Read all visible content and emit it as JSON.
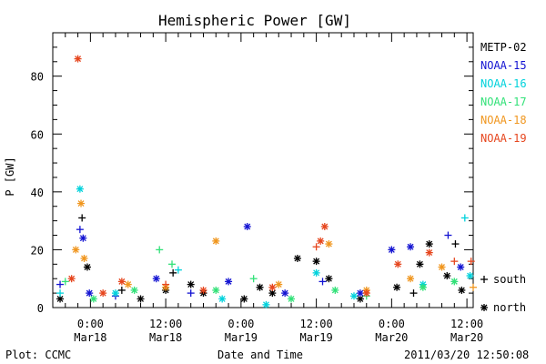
{
  "chart_data": {
    "type": "scatter",
    "title": "Hemispheric Power [GW]",
    "ylabel": "P [GW]",
    "xlabel": "Date and Time",
    "ylim": [
      0,
      95
    ],
    "xlim": [
      "2011-03-17 18:00",
      "2011-03-20 13:00"
    ],
    "y_ticks": [
      0,
      20,
      40,
      60,
      80
    ],
    "x_ticks": [
      {
        "time": "2011-03-18 00:00",
        "label1": "0:00",
        "label2": "Mar18"
      },
      {
        "time": "2011-03-18 12:00",
        "label1": "12:00",
        "label2": "Mar18"
      },
      {
        "time": "2011-03-19 00:00",
        "label1": "0:00",
        "label2": "Mar19"
      },
      {
        "time": "2011-03-19 12:00",
        "label1": "12:00",
        "label2": "Mar19"
      },
      {
        "time": "2011-03-20 00:00",
        "label1": "0:00",
        "label2": "Mar20"
      },
      {
        "time": "2011-03-20 12:00",
        "label1": "12:00",
        "label2": "Mar20"
      }
    ],
    "grid": false,
    "legend_position": "right",
    "markers": {
      "south": "+",
      "north": "*"
    },
    "marker_legend": [
      {
        "symbol": "+",
        "label": "south"
      },
      {
        "symbol": "*",
        "label": "north"
      }
    ],
    "series": [
      {
        "name": "METP-02",
        "color": "#000000",
        "points": [
          {
            "t": "2011-03-17 19:10",
            "v": 3,
            "h": "north"
          },
          {
            "t": "2011-03-17 22:40",
            "v": 31,
            "h": "south"
          },
          {
            "t": "2011-03-17 23:30",
            "v": 14,
            "h": "north"
          },
          {
            "t": "2011-03-18 05:00",
            "v": 6,
            "h": "south"
          },
          {
            "t": "2011-03-18 08:00",
            "v": 3,
            "h": "north"
          },
          {
            "t": "2011-03-18 12:00",
            "v": 6,
            "h": "north"
          },
          {
            "t": "2011-03-18 13:10",
            "v": 12,
            "h": "south"
          },
          {
            "t": "2011-03-18 16:00",
            "v": 8,
            "h": "north"
          },
          {
            "t": "2011-03-18 18:00",
            "v": 5,
            "h": "north"
          },
          {
            "t": "2011-03-19 00:30",
            "v": 3,
            "h": "north"
          },
          {
            "t": "2011-03-19 03:00",
            "v": 7,
            "h": "north"
          },
          {
            "t": "2011-03-19 05:00",
            "v": 5,
            "h": "north"
          },
          {
            "t": "2011-03-19 09:00",
            "v": 17,
            "h": "north"
          },
          {
            "t": "2011-03-19 12:00",
            "v": 16,
            "h": "north"
          },
          {
            "t": "2011-03-19 14:00",
            "v": 10,
            "h": "north"
          },
          {
            "t": "2011-03-19 19:00",
            "v": 3,
            "h": "north"
          },
          {
            "t": "2011-03-20 00:50",
            "v": 7,
            "h": "north"
          },
          {
            "t": "2011-03-20 03:30",
            "v": 5,
            "h": "south"
          },
          {
            "t": "2011-03-20 04:30",
            "v": 15,
            "h": "north"
          },
          {
            "t": "2011-03-20 06:00",
            "v": 22,
            "h": "north"
          },
          {
            "t": "2011-03-20 08:50",
            "v": 11,
            "h": "north"
          },
          {
            "t": "2011-03-20 10:10",
            "v": 22,
            "h": "south"
          },
          {
            "t": "2011-03-20 11:10",
            "v": 6,
            "h": "north"
          }
        ]
      },
      {
        "name": "NOAA-15",
        "color": "#1414d2",
        "points": [
          {
            "t": "2011-03-17 19:10",
            "v": 8,
            "h": "south"
          },
          {
            "t": "2011-03-17 22:20",
            "v": 27,
            "h": "south"
          },
          {
            "t": "2011-03-17 22:50",
            "v": 24,
            "h": "north"
          },
          {
            "t": "2011-03-17 23:50",
            "v": 5,
            "h": "north"
          },
          {
            "t": "2011-03-18 04:00",
            "v": 4,
            "h": "south"
          },
          {
            "t": "2011-03-18 10:30",
            "v": 10,
            "h": "north"
          },
          {
            "t": "2011-03-18 16:00",
            "v": 5,
            "h": "south"
          },
          {
            "t": "2011-03-18 22:00",
            "v": 9,
            "h": "north"
          },
          {
            "t": "2011-03-19 01:00",
            "v": 28,
            "h": "north"
          },
          {
            "t": "2011-03-19 07:00",
            "v": 5,
            "h": "north"
          },
          {
            "t": "2011-03-19 13:00",
            "v": 9,
            "h": "south"
          },
          {
            "t": "2011-03-19 19:00",
            "v": 5,
            "h": "north"
          },
          {
            "t": "2011-03-20 00:00",
            "v": 20,
            "h": "north"
          },
          {
            "t": "2011-03-20 03:00",
            "v": 21,
            "h": "north"
          },
          {
            "t": "2011-03-20 09:00",
            "v": 25,
            "h": "south"
          },
          {
            "t": "2011-03-20 11:00",
            "v": 14,
            "h": "north"
          }
        ]
      },
      {
        "name": "NOAA-16",
        "color": "#00d2dc",
        "points": [
          {
            "t": "2011-03-17 19:10",
            "v": 5,
            "h": "south"
          },
          {
            "t": "2011-03-17 22:20",
            "v": 41,
            "h": "north"
          },
          {
            "t": "2011-03-18 04:00",
            "v": 5,
            "h": "north"
          },
          {
            "t": "2011-03-18 14:00",
            "v": 13,
            "h": "south"
          },
          {
            "t": "2011-03-18 21:00",
            "v": 3,
            "h": "north"
          },
          {
            "t": "2011-03-19 04:00",
            "v": 1,
            "h": "north"
          },
          {
            "t": "2011-03-19 12:00",
            "v": 12,
            "h": "north"
          },
          {
            "t": "2011-03-19 18:00",
            "v": 4,
            "h": "north"
          },
          {
            "t": "2011-03-20 05:00",
            "v": 8,
            "h": "north"
          },
          {
            "t": "2011-03-20 11:40",
            "v": 31,
            "h": "south"
          },
          {
            "t": "2011-03-20 12:30",
            "v": 11,
            "h": "north"
          }
        ]
      },
      {
        "name": "NOAA-17",
        "color": "#32e178",
        "points": [
          {
            "t": "2011-03-17 20:00",
            "v": 9,
            "h": "south"
          },
          {
            "t": "2011-03-18 00:30",
            "v": 3,
            "h": "north"
          },
          {
            "t": "2011-03-18 07:00",
            "v": 6,
            "h": "north"
          },
          {
            "t": "2011-03-18 11:00",
            "v": 20,
            "h": "south"
          },
          {
            "t": "2011-03-18 13:00",
            "v": 15,
            "h": "south"
          },
          {
            "t": "2011-03-18 20:00",
            "v": 6,
            "h": "north"
          },
          {
            "t": "2011-03-19 02:00",
            "v": 10,
            "h": "south"
          },
          {
            "t": "2011-03-19 08:00",
            "v": 3,
            "h": "north"
          },
          {
            "t": "2011-03-19 15:00",
            "v": 6,
            "h": "north"
          },
          {
            "t": "2011-03-19 20:00",
            "v": 4,
            "h": "south"
          },
          {
            "t": "2011-03-20 05:00",
            "v": 7,
            "h": "north"
          },
          {
            "t": "2011-03-20 10:00",
            "v": 9,
            "h": "north"
          }
        ]
      },
      {
        "name": "NOAA-18",
        "color": "#f0961e",
        "points": [
          {
            "t": "2011-03-17 21:40",
            "v": 20,
            "h": "north"
          },
          {
            "t": "2011-03-17 22:30",
            "v": 36,
            "h": "north"
          },
          {
            "t": "2011-03-17 23:00",
            "v": 17,
            "h": "north"
          },
          {
            "t": "2011-03-18 06:00",
            "v": 8,
            "h": "north"
          },
          {
            "t": "2011-03-18 12:00",
            "v": 7,
            "h": "north"
          },
          {
            "t": "2011-03-18 20:00",
            "v": 23,
            "h": "north"
          },
          {
            "t": "2011-03-19 06:00",
            "v": 8,
            "h": "north"
          },
          {
            "t": "2011-03-19 14:00",
            "v": 22,
            "h": "north"
          },
          {
            "t": "2011-03-19 20:00",
            "v": 6,
            "h": "north"
          },
          {
            "t": "2011-03-20 03:00",
            "v": 10,
            "h": "north"
          },
          {
            "t": "2011-03-20 08:00",
            "v": 14,
            "h": "north"
          },
          {
            "t": "2011-03-20 13:00",
            "v": 7,
            "h": "south"
          }
        ]
      },
      {
        "name": "NOAA-19",
        "color": "#e6461e",
        "points": [
          {
            "t": "2011-03-17 21:00",
            "v": 10,
            "h": "north"
          },
          {
            "t": "2011-03-17 22:00",
            "v": 86,
            "h": "north"
          },
          {
            "t": "2011-03-18 02:00",
            "v": 5,
            "h": "north"
          },
          {
            "t": "2011-03-18 05:00",
            "v": 9,
            "h": "north"
          },
          {
            "t": "2011-03-18 12:00",
            "v": 8,
            "h": "south"
          },
          {
            "t": "2011-03-18 18:00",
            "v": 6,
            "h": "north"
          },
          {
            "t": "2011-03-19 05:00",
            "v": 7,
            "h": "north"
          },
          {
            "t": "2011-03-19 12:00",
            "v": 21,
            "h": "south"
          },
          {
            "t": "2011-03-19 12:40",
            "v": 23,
            "h": "north"
          },
          {
            "t": "2011-03-19 13:20",
            "v": 28,
            "h": "north"
          },
          {
            "t": "2011-03-19 20:00",
            "v": 5,
            "h": "north"
          },
          {
            "t": "2011-03-20 01:00",
            "v": 15,
            "h": "north"
          },
          {
            "t": "2011-03-20 06:00",
            "v": 19,
            "h": "north"
          },
          {
            "t": "2011-03-20 10:00",
            "v": 16,
            "h": "south"
          },
          {
            "t": "2011-03-20 12:40",
            "v": 16,
            "h": "south"
          }
        ]
      }
    ]
  },
  "footer": {
    "credit": "Plot: CCMC",
    "x_axis_title": "Date and Time",
    "timestamp": "2011/03/20 12:50:08"
  }
}
